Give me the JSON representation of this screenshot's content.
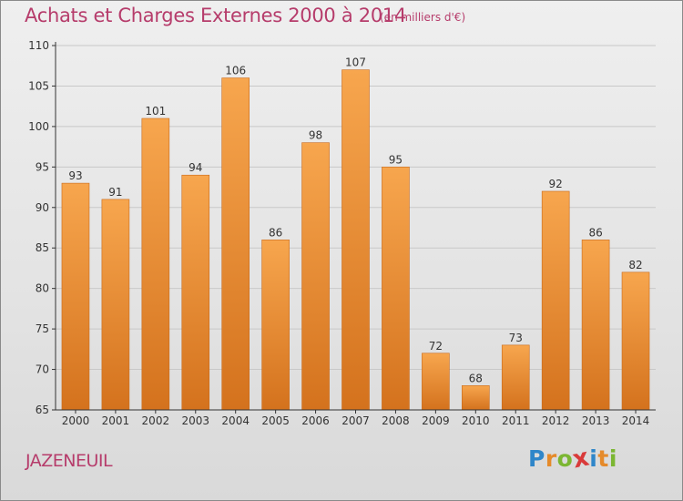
{
  "header": {
    "title": "Achats et Charges Externes 2000 à 2014",
    "subtitle": "(en milliers d'€)"
  },
  "footer": {
    "commune": "JAZENEUIL",
    "logo_letters": [
      "P",
      "r",
      "o",
      "x",
      "i",
      "t",
      "i"
    ],
    "logo_colors": [
      "#2f86c9",
      "#e58a2a",
      "#7bb632",
      "#d93a3a",
      "#2f86c9",
      "#e58a2a",
      "#7bb632"
    ]
  },
  "colors": {
    "bar_top": "#f7a64e",
    "bar_bottom": "#d4721d",
    "bar_edge": "#c8691a",
    "title": "#b63c6b",
    "axis": "#333333",
    "grid": "#c8c8c8"
  },
  "chart_data": {
    "type": "bar",
    "categories": [
      "2000",
      "2001",
      "2002",
      "2003",
      "2004",
      "2005",
      "2006",
      "2007",
      "2008",
      "2009",
      "2010",
      "2011",
      "2012",
      "2013",
      "2014"
    ],
    "values": [
      93,
      91,
      101,
      94,
      106,
      86,
      98,
      107,
      95,
      72,
      68,
      73,
      92,
      86,
      82
    ],
    "ylim": [
      65,
      110
    ],
    "yticks": [
      65,
      70,
      75,
      80,
      85,
      90,
      95,
      100,
      105,
      110
    ],
    "grid": true
  }
}
